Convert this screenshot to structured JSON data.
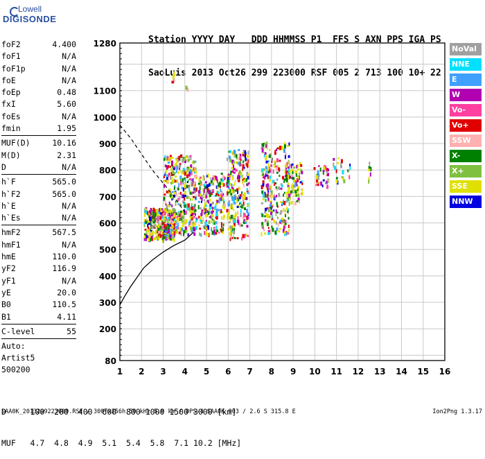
{
  "logo": {
    "line1": "Lowell",
    "line2": "DIGISONDE"
  },
  "station": {
    "header": "Station YYYY DAY   DDD HHMMSS P1  FFS S AXN PPS IGA PS",
    "values": "SaoLuis 2013 Oct26 299 223000 RSF 005 2 713 100 10+ 22"
  },
  "params": {
    "group1": [
      {
        "name": "foF2",
        "value": "4.400"
      },
      {
        "name": "foF1",
        "value": "N/A"
      },
      {
        "name": "foF1p",
        "value": "N/A"
      },
      {
        "name": "foE",
        "value": "N/A"
      },
      {
        "name": "foEp",
        "value": "0.48"
      },
      {
        "name": "fxI",
        "value": "5.60"
      },
      {
        "name": "foEs",
        "value": "N/A"
      },
      {
        "name": "fmin",
        "value": "1.95"
      }
    ],
    "group2": [
      {
        "name": "MUF(D)",
        "value": "10.16"
      },
      {
        "name": "M(D)",
        "value": "2.31"
      },
      {
        "name": "D",
        "value": "N/A"
      }
    ],
    "group3": [
      {
        "name": "h`F",
        "value": "565.0"
      },
      {
        "name": "h`F2",
        "value": "565.0"
      },
      {
        "name": "h`E",
        "value": "N/A"
      },
      {
        "name": "h`Es",
        "value": "N/A"
      }
    ],
    "group4": [
      {
        "name": "hmF2",
        "value": "567.5"
      },
      {
        "name": "hmF1",
        "value": "N/A"
      },
      {
        "name": "hmE",
        "value": "110.0"
      },
      {
        "name": "yF2",
        "value": "116.9"
      },
      {
        "name": "yF1",
        "value": "N/A"
      },
      {
        "name": "yE",
        "value": "20.0"
      },
      {
        "name": "B0",
        "value": "110.5"
      },
      {
        "name": "B1",
        "value": "4.11"
      }
    ],
    "clevel": {
      "name": "C-level",
      "value": "55"
    },
    "auto": [
      "Auto:",
      "Artist5",
      "500200"
    ]
  },
  "legend": [
    {
      "label": "NoVal",
      "color": "#a0a0a0"
    },
    {
      "label": "NNE",
      "color": "#00e0ff"
    },
    {
      "label": "E",
      "color": "#40a0ff"
    },
    {
      "label": "W",
      "color": "#b000b0"
    },
    {
      "label": "Vo-",
      "color": "#ff40a0"
    },
    {
      "label": "Vo+",
      "color": "#e00000"
    },
    {
      "label": "SSW",
      "color": "#ffb0b0"
    },
    {
      "label": "X-",
      "color": "#008000"
    },
    {
      "label": "X+",
      "color": "#80c040"
    },
    {
      "label": "SSE",
      "color": "#e0e000"
    },
    {
      "label": "NNW",
      "color": "#0000e0"
    }
  ],
  "bottom": {
    "d_line": "D     100  200  400  600  800 1000 1500 3000 [km]",
    "muf_line": "MUF   4.7  4.8  4.9  5.1  5.4  5.8  7.1 10.2 [MHz]"
  },
  "footer": {
    "left": "SAA0K_2013299223000.RSF / 300fx256h 50 kHz 5.0 km / DPS-4 SAA0K 903 / 2.6 S 315.8 E",
    "right": "Ion2Png 1.3.17"
  },
  "chart_data": {
    "type": "scatter",
    "xlim": [
      1,
      16
    ],
    "ylim": [
      80,
      1280
    ],
    "x_ticks": [
      1,
      2,
      3,
      4,
      5,
      6,
      7,
      8,
      9,
      10,
      11,
      12,
      13,
      14,
      15,
      16
    ],
    "y_ticks": [
      80,
      200,
      300,
      400,
      500,
      600,
      700,
      800,
      900,
      1000,
      1100,
      1280
    ],
    "grid": true,
    "profile_curve": {
      "x": [
        1.0,
        1.2,
        1.5,
        1.8,
        2.1,
        2.5,
        3.0,
        3.5,
        4.0,
        4.4
      ],
      "y": [
        290,
        320,
        360,
        395,
        430,
        460,
        490,
        515,
        535,
        565
      ]
    },
    "dashed_curve": {
      "x": [
        1.0,
        1.5,
        2.0,
        2.5,
        3.0,
        3.5,
        4.0
      ],
      "y": [
        970,
        920,
        860,
        800,
        750,
        700,
        640
      ]
    },
    "echo_clusters": [
      {
        "x": [
          2.1,
          3.5
        ],
        "y": [
          540,
          660
        ],
        "density": 320
      },
      {
        "x": [
          3.0,
          4.5
        ],
        "y": [
          560,
          860
        ],
        "density": 380
      },
      {
        "x": [
          4.6,
          5.8
        ],
        "y": [
          560,
          790
        ],
        "density": 220
      },
      {
        "x": [
          5.9,
          6.9
        ],
        "y": [
          545,
          880
        ],
        "density": 260
      },
      {
        "x": [
          7.5,
          8.8
        ],
        "y": [
          560,
          910
        ],
        "density": 260
      },
      {
        "x": [
          8.6,
          9.4
        ],
        "y": [
          680,
          830
        ],
        "density": 90
      },
      {
        "x": [
          9.9,
          10.6
        ],
        "y": [
          740,
          820
        ],
        "density": 30
      },
      {
        "x": [
          10.8,
          11.6
        ],
        "y": [
          760,
          850
        ],
        "density": 25
      },
      {
        "x": [
          12.45,
          12.55
        ],
        "y": [
          760,
          840
        ],
        "density": 8
      },
      {
        "x": [
          3.3,
          3.5
        ],
        "y": [
          1130,
          1180
        ],
        "density": 8
      },
      {
        "x": [
          4.0,
          4.1
        ],
        "y": [
          1100,
          1120
        ],
        "density": 3
      }
    ]
  }
}
